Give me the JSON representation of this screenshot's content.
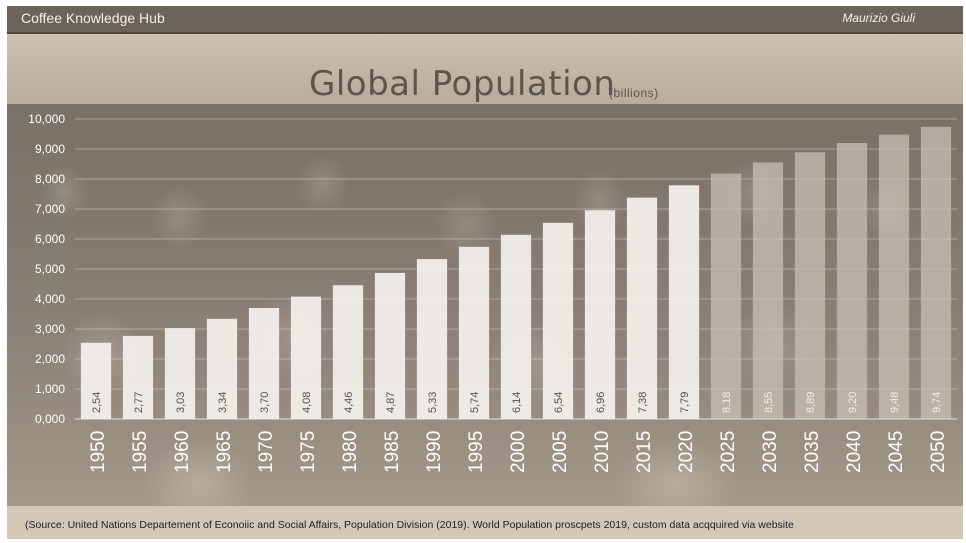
{
  "header": {
    "brand": "Coffee Knowledge Hub",
    "author": "Maurizio Giuli"
  },
  "footer": {
    "source": "(Source: United Nations Departement  of Econoiic  and Social Affairs,  Population Division  (2019). World Population  proscpets  2019, custom data acqquired  via website"
  },
  "chart_data": {
    "type": "bar",
    "title": "Global Population",
    "unit_label": "(billions)",
    "categories": [
      "1950",
      "1955",
      "1960",
      "1965",
      "1970",
      "1975",
      "1980",
      "1985",
      "1990",
      "1995",
      "2000",
      "2005",
      "2010",
      "2015",
      "2020",
      "2025",
      "2030",
      "2035",
      "2040",
      "2045",
      "2050"
    ],
    "values": [
      2.54,
      2.77,
      3.03,
      3.34,
      3.7,
      4.08,
      4.46,
      4.87,
      5.33,
      5.74,
      6.14,
      6.54,
      6.96,
      7.38,
      7.79,
      8.18,
      8.55,
      8.89,
      9.2,
      9.48,
      9.74
    ],
    "value_labels": [
      "2,54",
      "2,77",
      "3,03",
      "3,34",
      "3,70",
      "4,08",
      "4,46",
      "4,87",
      "5,33",
      "5,74",
      "6,14",
      "6,54",
      "6,96",
      "7,38",
      "7,79",
      "8,18",
      "8,55",
      "8,89",
      "9,20",
      "9,48",
      "9,74"
    ],
    "y_ticks": [
      0,
      1,
      2,
      3,
      4,
      5,
      6,
      7,
      8,
      9,
      10
    ],
    "y_tick_labels": [
      "0,000",
      "1,000",
      "2,000",
      "3,000",
      "4,000",
      "5,000",
      "6,000",
      "7,000",
      "8,000",
      "9,000",
      "10,000"
    ],
    "ylim": [
      0,
      10
    ],
    "projection_from": "2025",
    "grid": true,
    "colors": {
      "bar": "#f1eeea",
      "projected_bar": "#c9c1b8",
      "label": "#5a534c",
      "axis_text": "#ffffff"
    }
  }
}
